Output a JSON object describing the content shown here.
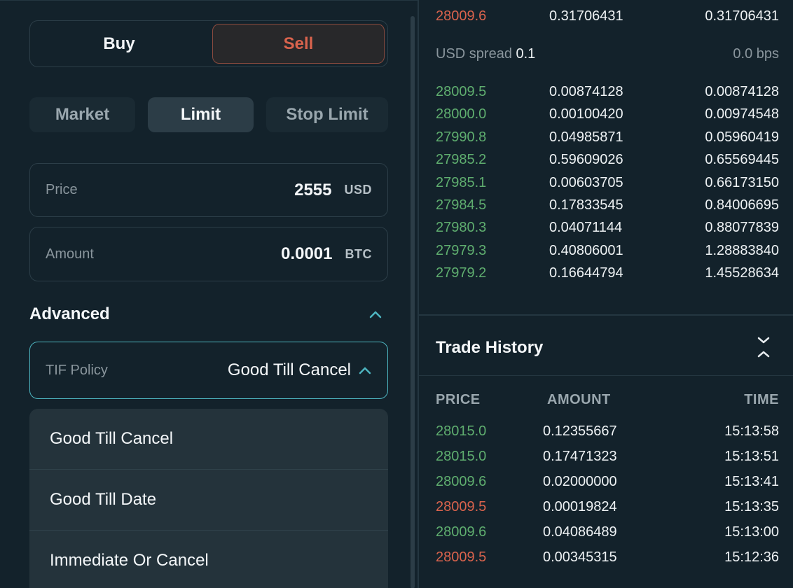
{
  "order_form": {
    "side": {
      "buy_label": "Buy",
      "sell_label": "Sell",
      "selected": "Sell"
    },
    "order_types": [
      {
        "label": "Market",
        "selected": false
      },
      {
        "label": "Limit",
        "selected": true
      },
      {
        "label": "Stop Limit",
        "selected": false
      }
    ],
    "price": {
      "label": "Price",
      "value": "2555",
      "unit": "USD"
    },
    "amount": {
      "label": "Amount",
      "value": "0.0001",
      "unit": "BTC"
    },
    "advanced": {
      "title": "Advanced",
      "expanded": true
    },
    "tif": {
      "label": "TIF Policy",
      "value": "Good Till Cancel",
      "open": true,
      "options": [
        "Good Till Cancel",
        "Good Till Date",
        "Immediate Or Cancel"
      ]
    }
  },
  "orderbook": {
    "asks": [
      {
        "price": "28009.6",
        "amount": "0.31706431",
        "total": "0.31706431",
        "side": "sell"
      }
    ],
    "spread": {
      "label": "USD spread",
      "value": "0.1",
      "bps": "0.0 bps"
    },
    "bids": [
      {
        "price": "28009.5",
        "amount": "0.00874128",
        "total": "0.00874128"
      },
      {
        "price": "28000.0",
        "amount": "0.00100420",
        "total": "0.00974548"
      },
      {
        "price": "27990.8",
        "amount": "0.04985871",
        "total": "0.05960419"
      },
      {
        "price": "27985.2",
        "amount": "0.59609026",
        "total": "0.65569445"
      },
      {
        "price": "27985.1",
        "amount": "0.00603705",
        "total": "0.66173150"
      },
      {
        "price": "27984.5",
        "amount": "0.17833545",
        "total": "0.84006695"
      },
      {
        "price": "27980.3",
        "amount": "0.04071144",
        "total": "0.88077839"
      },
      {
        "price": "27979.3",
        "amount": "0.40806001",
        "total": "1.28883840"
      },
      {
        "price": "27979.2",
        "amount": "0.16644794",
        "total": "1.45528634"
      }
    ]
  },
  "trade_history": {
    "title": "Trade History",
    "columns": {
      "price": "PRICE",
      "amount": "AMOUNT",
      "time": "TIME"
    },
    "trades": [
      {
        "price": "28015.0",
        "amount": "0.12355667",
        "time": "15:13:58",
        "side": "buy"
      },
      {
        "price": "28015.0",
        "amount": "0.17471323",
        "time": "15:13:51",
        "side": "buy"
      },
      {
        "price": "28009.6",
        "amount": "0.02000000",
        "time": "15:13:41",
        "side": "buy"
      },
      {
        "price": "28009.5",
        "amount": "0.00019824",
        "time": "15:13:35",
        "side": "sell"
      },
      {
        "price": "28009.6",
        "amount": "0.04086489",
        "time": "15:13:00",
        "side": "buy"
      },
      {
        "price": "28009.5",
        "amount": "0.00345315",
        "time": "15:12:36",
        "side": "sell"
      }
    ]
  },
  "colors": {
    "buy": "#5fae6f",
    "sell": "#d9634d",
    "accent": "#4db5c0",
    "background": "#13222b"
  },
  "icons": {
    "advanced_toggle": "chevron-up-icon",
    "tif_toggle": "chevron-up-icon",
    "collapse": "collapse-icon"
  }
}
